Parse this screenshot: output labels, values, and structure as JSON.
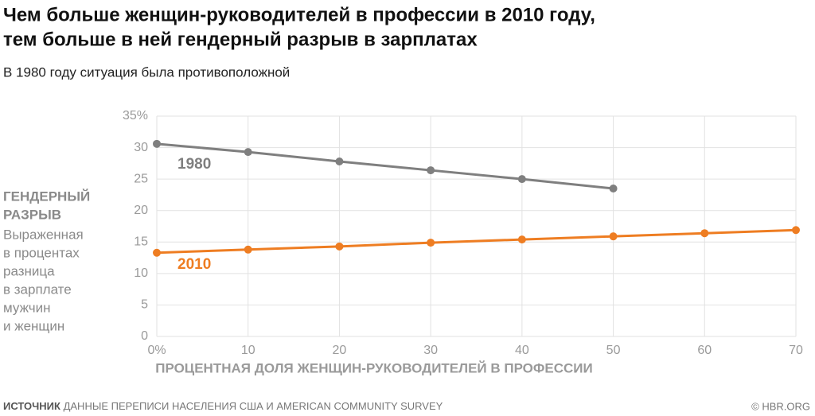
{
  "chart_data": {
    "type": "line",
    "title": [
      "Чем больше женщин-руководителей в профессии в 2010 году,",
      "тем больше в ней гендерный разрыв в зарплатах"
    ],
    "subtitle": "В 1980 году ситуация была противоположной",
    "y_label": {
      "title": [
        "ГЕНДЕРНЫЙ",
        "РАЗРЫВ"
      ],
      "description": [
        "Выраженная",
        "в процентах",
        "разница",
        "в зарплате",
        "мужчин",
        "и женщин"
      ]
    },
    "x_label": "ПРОЦЕНТНАЯ ДОЛЯ ЖЕНЩИН-РУКОВОДИТЕЛЕЙ В ПРОФЕССИИ",
    "source": {
      "label": "ИСТОЧНИК",
      "text": "ДАННЫЕ ПЕРЕПИСИ НАСЕЛЕНИЯ США И AMERICAN COMMUNITY SURVEY"
    },
    "credit": "© HBR.ORG",
    "series": [
      {
        "name": "1980",
        "color": "#7f7f7f",
        "x": [
          0,
          10,
          20,
          30,
          40,
          50
        ],
        "values": [
          30.6,
          29.3,
          27.8,
          26.4,
          25.0,
          23.5
        ]
      },
      {
        "name": "2010",
        "color": "#ee7d22",
        "x": [
          0,
          10,
          20,
          30,
          40,
          50,
          60,
          70
        ],
        "values": [
          13.3,
          13.8,
          14.3,
          14.9,
          15.4,
          15.9,
          16.4,
          16.9
        ]
      }
    ],
    "xlim": [
      0,
      70
    ],
    "xticks": [
      {
        "value": 0,
        "label": "0%"
      },
      10,
      20,
      30,
      40,
      50,
      60,
      70
    ],
    "ylim": [
      0,
      35
    ],
    "yticks": [
      0,
      5,
      10,
      15,
      20,
      25,
      30,
      {
        "value": 35,
        "label": "35%"
      }
    ],
    "grid": true
  }
}
